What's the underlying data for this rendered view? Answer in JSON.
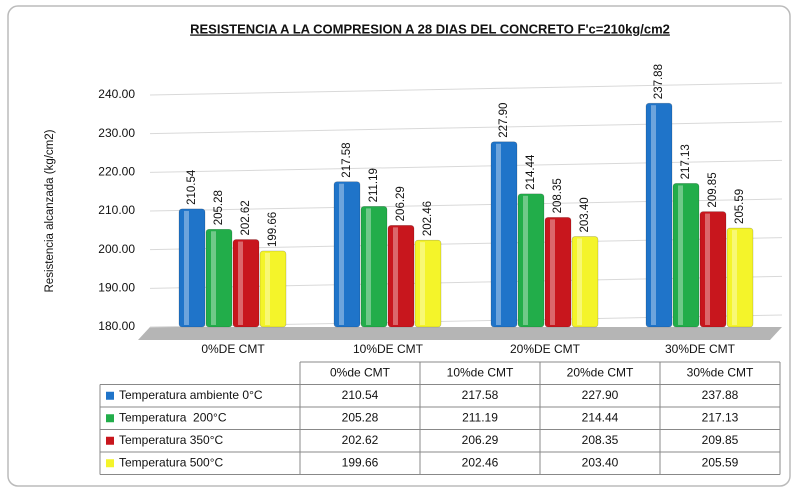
{
  "chart_data": {
    "type": "bar",
    "title": "RESISTENCIA A LA COMPRESION A 28 DIAS DEL CONCRETO F'c=210kg/cm2",
    "y_label": "Resistencia alcanzada (kg/cm2)",
    "categories": [
      "0%DE CMT",
      "10%DE CMT",
      "20%DE CMT",
      "30%DE CMT"
    ],
    "table_columns": [
      "0%de CMT",
      "10%de CMT",
      "20%de CMT",
      "30%de CMT"
    ],
    "ylim": [
      180,
      240
    ],
    "yticks": [
      {
        "value": 180,
        "label": "180.00"
      },
      {
        "value": 190,
        "label": "190.00"
      },
      {
        "value": 200,
        "label": "200.00"
      },
      {
        "value": 210,
        "label": "210.00"
      },
      {
        "value": 220,
        "label": "220.00"
      },
      {
        "value": 230,
        "label": "230.00"
      },
      {
        "value": 240,
        "label": "240.00"
      }
    ],
    "grid": true,
    "series": [
      {
        "name": "Temperatura ambiente 0°C",
        "color": "#1f74c9",
        "values": [
          210.54,
          217.58,
          227.9,
          237.88
        ],
        "value_labels": [
          "210.54",
          "217.58",
          "227.90",
          "237.88"
        ]
      },
      {
        "name": "Temperatura  200°C",
        "color": "#22ad4a",
        "values": [
          205.28,
          211.19,
          214.44,
          217.13
        ],
        "value_labels": [
          "205.28",
          "211.19",
          "214.44",
          "217.13"
        ]
      },
      {
        "name": "Temperatura 350°C",
        "color": "#c8161d",
        "values": [
          202.62,
          206.29,
          208.35,
          209.85
        ],
        "value_labels": [
          "202.62",
          "206.29",
          "208.35",
          "209.85"
        ]
      },
      {
        "name": "Temperatura 500°C",
        "color": "#f4f42a",
        "values": [
          199.66,
          202.46,
          203.4,
          205.59
        ],
        "value_labels": [
          "199.66",
          "202.46",
          "203.40",
          "205.59"
        ]
      }
    ]
  }
}
